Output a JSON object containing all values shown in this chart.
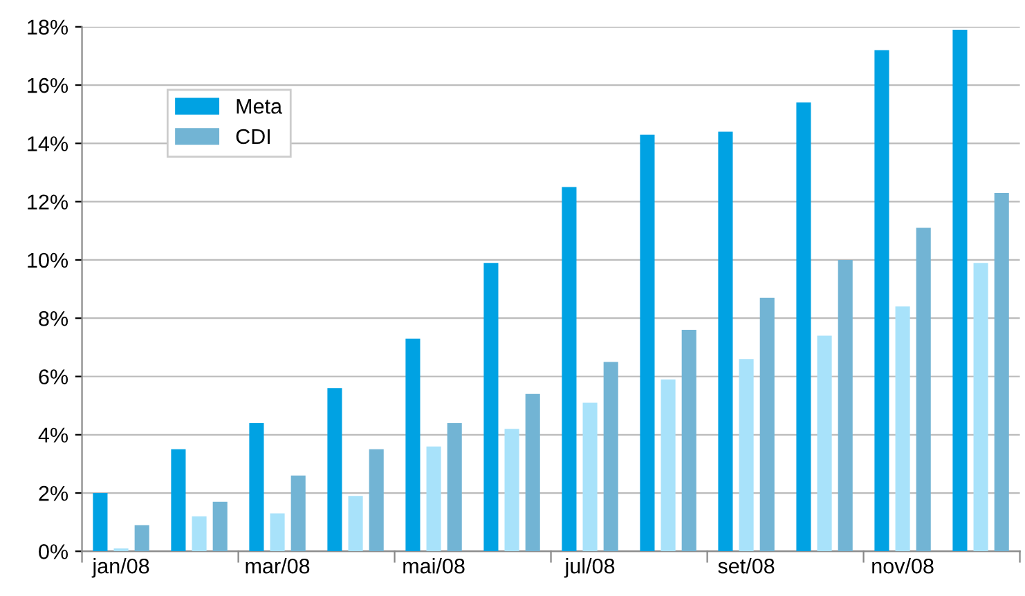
{
  "chart_data": {
    "type": "bar",
    "categories": [
      "jan/08",
      null,
      "mar/08",
      null,
      "mai/08",
      null,
      "jul/08",
      null,
      "set/08",
      null,
      "nov/08",
      null
    ],
    "series": [
      {
        "name": "Meta",
        "color": "#00a2e3",
        "values": [
          2.0,
          3.5,
          4.4,
          5.6,
          7.3,
          9.9,
          12.5,
          14.3,
          14.4,
          15.4,
          17.2,
          17.9
        ]
      },
      {
        "color": "#a8e2fa",
        "values": [
          0.1,
          1.2,
          1.3,
          1.9,
          3.6,
          4.2,
          5.1,
          5.9,
          6.6,
          7.4,
          8.4,
          9.9
        ]
      },
      {
        "name": "CDI",
        "color": "#72b4d4",
        "values": [
          0.9,
          1.7,
          2.6,
          3.5,
          4.4,
          5.4,
          6.5,
          7.6,
          8.7,
          10.0,
          11.1,
          12.3
        ]
      }
    ],
    "ylim": [
      0,
      18
    ],
    "yticks": [
      {
        "value": 0,
        "label": "0%"
      },
      {
        "value": 2,
        "label": "2%"
      },
      {
        "value": 4,
        "label": "4%"
      },
      {
        "value": 6,
        "label": "6%"
      },
      {
        "value": 8,
        "label": "8%"
      },
      {
        "value": 10,
        "label": "10%"
      },
      {
        "value": 12,
        "label": "12%"
      },
      {
        "value": 14,
        "label": "14%"
      },
      {
        "value": 16,
        "label": "16%"
      },
      {
        "value": 18,
        "label": "18%"
      }
    ],
    "grid": "y",
    "legend": "top left"
  }
}
